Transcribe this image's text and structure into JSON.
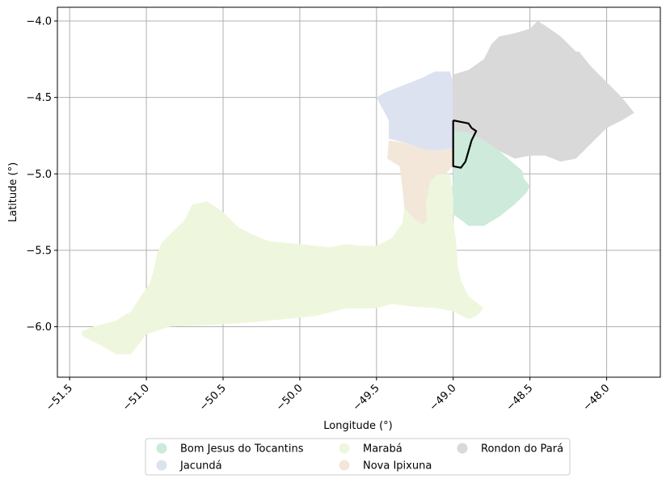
{
  "chart_data": {
    "type": "map",
    "xlabel": "Longitude (°)",
    "ylabel": "Latitude (°)",
    "xlim": [
      -51.58,
      -47.65
    ],
    "ylim": [
      -6.33,
      -3.91
    ],
    "xticks": [
      {
        "value": -51.5,
        "label": "−51.5"
      },
      {
        "value": -51.0,
        "label": "−51.0"
      },
      {
        "value": -50.5,
        "label": "−50.5"
      },
      {
        "value": -50.0,
        "label": "−50.0"
      },
      {
        "value": -49.5,
        "label": "−49.5"
      },
      {
        "value": -49.0,
        "label": "−49.0"
      },
      {
        "value": -48.5,
        "label": "−48.5"
      },
      {
        "value": -48.0,
        "label": "−48.0"
      }
    ],
    "yticks": [
      {
        "value": -4.0,
        "label": "−4.0"
      },
      {
        "value": -4.5,
        "label": "−4.5"
      },
      {
        "value": -5.0,
        "label": "−5.0"
      },
      {
        "value": -5.5,
        "label": "−5.5"
      },
      {
        "value": -6.0,
        "label": "−6.0"
      }
    ],
    "grid": true,
    "legend_position": "bottom-center",
    "regions": [
      {
        "name": "Bom Jesus do Tocantins",
        "color": "#cdeadb",
        "coords": [
          [
            -49.0,
            -4.72
          ],
          [
            -48.9,
            -4.73
          ],
          [
            -48.8,
            -4.78
          ],
          [
            -48.7,
            -4.85
          ],
          [
            -48.55,
            -4.98
          ],
          [
            -48.54,
            -5.03
          ],
          [
            -48.5,
            -5.08
          ],
          [
            -48.52,
            -5.12
          ],
          [
            -48.6,
            -5.2
          ],
          [
            -48.7,
            -5.28
          ],
          [
            -48.8,
            -5.34
          ],
          [
            -48.9,
            -5.34
          ],
          [
            -48.95,
            -5.3
          ],
          [
            -49.02,
            -5.25
          ],
          [
            -49.02,
            -5.15
          ],
          [
            -49.0,
            -5.05
          ],
          [
            -49.0,
            -4.9
          ],
          [
            -49.0,
            -4.72
          ]
        ]
      },
      {
        "name": "Jacundá",
        "color": "#dde2f0",
        "coords": [
          [
            -49.5,
            -4.5
          ],
          [
            -49.45,
            -4.47
          ],
          [
            -49.35,
            -4.43
          ],
          [
            -49.2,
            -4.37
          ],
          [
            -49.12,
            -4.33
          ],
          [
            -49.02,
            -4.33
          ],
          [
            -49.0,
            -4.4
          ],
          [
            -49.0,
            -4.83
          ],
          [
            -49.1,
            -4.85
          ],
          [
            -49.2,
            -4.84
          ],
          [
            -49.3,
            -4.8
          ],
          [
            -49.42,
            -4.77
          ],
          [
            -49.42,
            -4.65
          ],
          [
            -49.5,
            -4.5
          ]
        ]
      },
      {
        "name": "Marabá",
        "color": "#eef7dd",
        "coords": [
          [
            -51.42,
            -6.03
          ],
          [
            -51.35,
            -6.0
          ],
          [
            -51.2,
            -5.96
          ],
          [
            -51.1,
            -5.9
          ],
          [
            -51.05,
            -5.82
          ],
          [
            -50.98,
            -5.72
          ],
          [
            -50.95,
            -5.62
          ],
          [
            -50.93,
            -5.52
          ],
          [
            -50.9,
            -5.45
          ],
          [
            -50.85,
            -5.4
          ],
          [
            -50.75,
            -5.3
          ],
          [
            -50.7,
            -5.2
          ],
          [
            -50.6,
            -5.18
          ],
          [
            -50.5,
            -5.25
          ],
          [
            -50.4,
            -5.35
          ],
          [
            -50.3,
            -5.4
          ],
          [
            -50.2,
            -5.44
          ],
          [
            -50.1,
            -5.45
          ],
          [
            -50.0,
            -5.46
          ],
          [
            -49.9,
            -5.47
          ],
          [
            -49.8,
            -5.48
          ],
          [
            -49.7,
            -5.46
          ],
          [
            -49.6,
            -5.47
          ],
          [
            -49.5,
            -5.47
          ],
          [
            -49.4,
            -5.42
          ],
          [
            -49.33,
            -5.32
          ],
          [
            -49.32,
            -5.22
          ],
          [
            -49.28,
            -5.1
          ],
          [
            -49.2,
            -5.05
          ],
          [
            -49.1,
            -5.0
          ],
          [
            -49.02,
            -5.0
          ],
          [
            -49.0,
            -5.15
          ],
          [
            -49.0,
            -5.3
          ],
          [
            -48.98,
            -5.45
          ],
          [
            -48.97,
            -5.6
          ],
          [
            -48.95,
            -5.7
          ],
          [
            -48.9,
            -5.8
          ],
          [
            -48.8,
            -5.88
          ],
          [
            -48.85,
            -5.93
          ],
          [
            -48.9,
            -5.95
          ],
          [
            -49.0,
            -5.9
          ],
          [
            -49.1,
            -5.88
          ],
          [
            -49.25,
            -5.87
          ],
          [
            -49.4,
            -5.85
          ],
          [
            -49.5,
            -5.88
          ],
          [
            -49.7,
            -5.88
          ],
          [
            -49.9,
            -5.93
          ],
          [
            -50.1,
            -5.95
          ],
          [
            -50.3,
            -5.97
          ],
          [
            -50.6,
            -5.99
          ],
          [
            -50.85,
            -6.0
          ],
          [
            -51.0,
            -6.05
          ],
          [
            -51.1,
            -6.18
          ],
          [
            -51.2,
            -6.18
          ],
          [
            -51.3,
            -6.12
          ],
          [
            -51.42,
            -6.06
          ],
          [
            -51.42,
            -6.03
          ]
        ]
      },
      {
        "name": "Nova Ipixuna",
        "color": "#f3e7da",
        "coords": [
          [
            -49.42,
            -4.78
          ],
          [
            -49.3,
            -4.8
          ],
          [
            -49.2,
            -4.84
          ],
          [
            -49.1,
            -4.85
          ],
          [
            -49.0,
            -4.83
          ],
          [
            -49.0,
            -4.95
          ],
          [
            -49.05,
            -5.0
          ],
          [
            -49.1,
            -5.0
          ],
          [
            -49.15,
            -5.05
          ],
          [
            -49.18,
            -5.2
          ],
          [
            -49.17,
            -5.3
          ],
          [
            -49.2,
            -5.33
          ],
          [
            -49.25,
            -5.3
          ],
          [
            -49.32,
            -5.22
          ],
          [
            -49.33,
            -5.1
          ],
          [
            -49.35,
            -4.95
          ],
          [
            -49.43,
            -4.9
          ],
          [
            -49.42,
            -4.78
          ]
        ]
      },
      {
        "name": "Rondon do Pará",
        "color": "#d9d9d9",
        "coords": [
          [
            -49.0,
            -4.35
          ],
          [
            -48.9,
            -4.32
          ],
          [
            -48.8,
            -4.25
          ],
          [
            -48.75,
            -4.15
          ],
          [
            -48.7,
            -4.1
          ],
          [
            -48.6,
            -4.08
          ],
          [
            -48.5,
            -4.05
          ],
          [
            -48.45,
            -4.0
          ],
          [
            -48.4,
            -4.03
          ],
          [
            -48.3,
            -4.1
          ],
          [
            -48.2,
            -4.2
          ],
          [
            -48.18,
            -4.2
          ],
          [
            -48.1,
            -4.3
          ],
          [
            -48.0,
            -4.4
          ],
          [
            -47.9,
            -4.5
          ],
          [
            -47.82,
            -4.6
          ],
          [
            -47.9,
            -4.65
          ],
          [
            -48.0,
            -4.7
          ],
          [
            -48.1,
            -4.8
          ],
          [
            -48.2,
            -4.9
          ],
          [
            -48.3,
            -4.92
          ],
          [
            -48.4,
            -4.88
          ],
          [
            -48.5,
            -4.88
          ],
          [
            -48.6,
            -4.9
          ],
          [
            -48.7,
            -4.85
          ],
          [
            -48.8,
            -4.78
          ],
          [
            -48.9,
            -4.73
          ],
          [
            -49.0,
            -4.72
          ],
          [
            -49.0,
            -4.35
          ]
        ]
      }
    ],
    "highlight_outline": {
      "color": "#000000",
      "coords": [
        [
          -49.0,
          -4.65
        ],
        [
          -48.95,
          -4.66
        ],
        [
          -48.9,
          -4.67
        ],
        [
          -48.88,
          -4.7
        ],
        [
          -48.85,
          -4.72
        ],
        [
          -48.88,
          -4.78
        ],
        [
          -48.9,
          -4.85
        ],
        [
          -48.92,
          -4.92
        ],
        [
          -48.95,
          -4.96
        ],
        [
          -49.0,
          -4.95
        ],
        [
          -49.0,
          -4.85
        ],
        [
          -49.0,
          -4.65
        ]
      ]
    }
  },
  "legend": {
    "items": [
      {
        "label": "Bom Jesus do Tocantins",
        "color": "#cdeadb"
      },
      {
        "label": "Jacundá",
        "color": "#dde2f0"
      },
      {
        "label": "Marabá",
        "color": "#eef7dd"
      },
      {
        "label": "Nova Ipixuna",
        "color": "#f3e7da"
      },
      {
        "label": "Rondon do Pará",
        "color": "#d9d9d9"
      }
    ]
  }
}
